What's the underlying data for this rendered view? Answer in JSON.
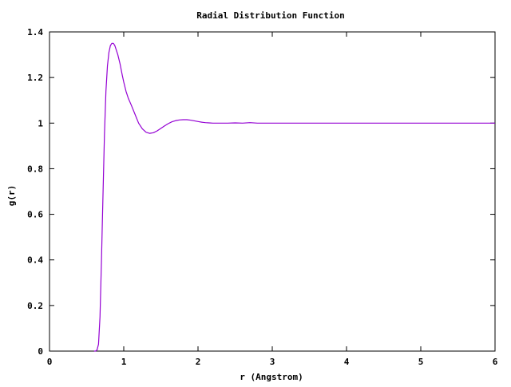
{
  "chart_data": {
    "type": "line",
    "title": "Radial Distribution Function",
    "xlabel": "r (Angstrom)",
    "ylabel": "g(r)",
    "xlim": [
      0,
      6
    ],
    "ylim": [
      0,
      1.4
    ],
    "x_ticks": [
      0,
      1,
      2,
      3,
      4,
      5,
      6
    ],
    "x_tick_labels": [
      "0",
      "1",
      "2",
      "3",
      "4",
      "5",
      "6"
    ],
    "y_ticks": [
      0,
      0.2,
      0.4,
      0.6,
      0.8,
      1.0,
      1.2,
      1.4
    ],
    "y_tick_labels": [
      "0",
      "0.2",
      "0.4",
      "0.6",
      "0.8",
      "1",
      "1.2",
      "1.4"
    ],
    "grid": false,
    "series": [
      {
        "color": "#9400d3",
        "x": [
          0.6,
          0.62,
          0.64,
          0.66,
          0.68,
          0.7,
          0.72,
          0.74,
          0.76,
          0.78,
          0.8,
          0.82,
          0.84,
          0.86,
          0.88,
          0.9,
          0.92,
          0.95,
          0.98,
          1.0,
          1.03,
          1.06,
          1.1,
          1.15,
          1.2,
          1.25,
          1.3,
          1.35,
          1.4,
          1.45,
          1.5,
          1.55,
          1.6,
          1.65,
          1.7,
          1.75,
          1.8,
          1.85,
          1.9,
          1.95,
          2.0,
          2.05,
          2.1,
          2.15,
          2.2,
          2.3,
          2.4,
          2.5,
          2.6,
          2.7,
          2.8,
          3.0,
          3.25,
          3.5,
          3.75,
          4.0,
          4.25,
          4.5,
          4.75,
          5.0,
          5.25,
          5.5,
          5.75,
          6.0
        ],
        "y": [
          0.0,
          0.0,
          0.005,
          0.03,
          0.15,
          0.4,
          0.68,
          0.95,
          1.14,
          1.25,
          1.31,
          1.34,
          1.35,
          1.35,
          1.34,
          1.32,
          1.3,
          1.26,
          1.21,
          1.18,
          1.14,
          1.11,
          1.08,
          1.04,
          1.0,
          0.975,
          0.96,
          0.955,
          0.958,
          0.966,
          0.977,
          0.988,
          0.998,
          1.006,
          1.011,
          1.014,
          1.015,
          1.015,
          1.013,
          1.01,
          1.007,
          1.004,
          1.002,
          1.001,
          1.0,
          1.0,
          1.0,
          1.001,
          1.0,
          1.002,
          1.0,
          1.0,
          1.0,
          1.0,
          1.0,
          1.0,
          1.0,
          1.0,
          1.0,
          1.0,
          1.0,
          1.0,
          1.0,
          1.0
        ]
      }
    ]
  }
}
